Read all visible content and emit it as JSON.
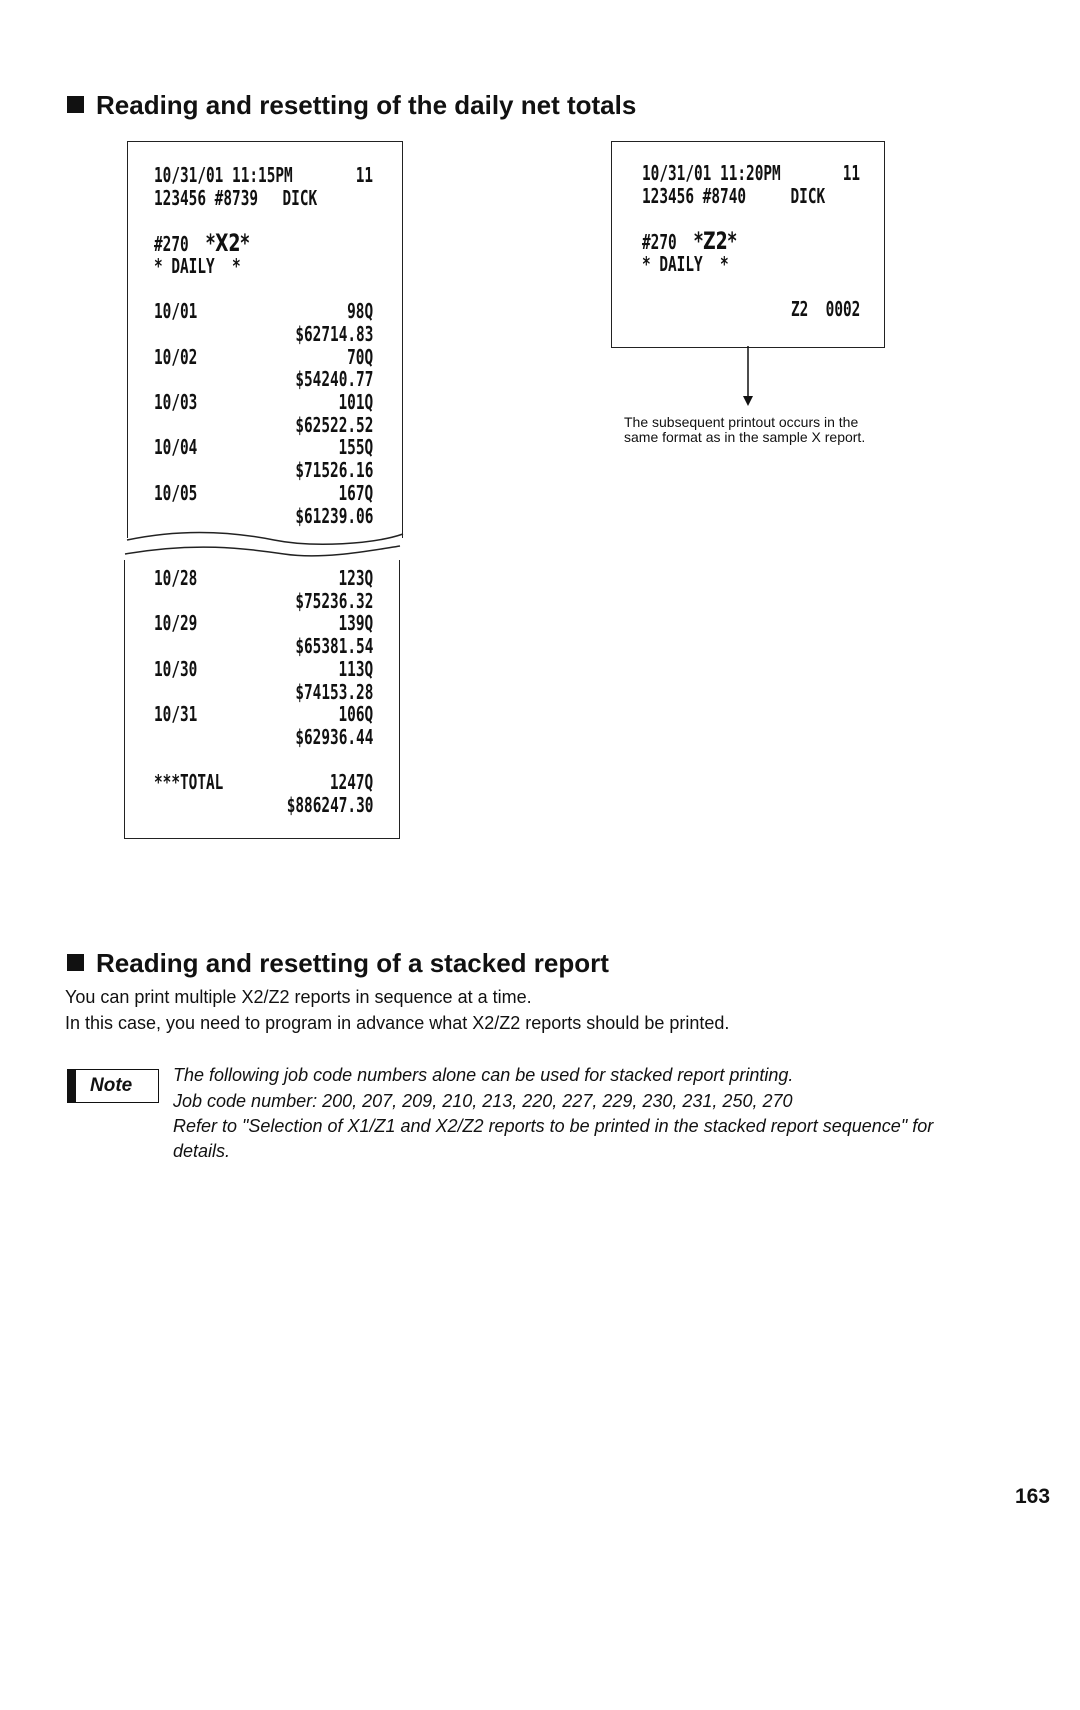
{
  "section1": {
    "heading": "Reading and resetting of the daily net totals",
    "x2_receipt": {
      "header_line1_left": "10/31/01 11:15PM",
      "header_line1_right": "11",
      "header_line2_left": "123456 #8739",
      "header_line2_right": "DICK",
      "job_code": "#270",
      "report_mode": "*X2*",
      "report_type": "* DAILY  *",
      "days_top": [
        {
          "date": "10/01",
          "count": "98Q",
          "amount": "$62714.83"
        },
        {
          "date": "10/02",
          "count": "70Q",
          "amount": "$54240.77"
        },
        {
          "date": "10/03",
          "count": "101Q",
          "amount": "$62522.52"
        },
        {
          "date": "10/04",
          "count": "155Q",
          "amount": "$71526.16"
        },
        {
          "date": "10/05",
          "count": "167Q",
          "amount": "$61239.06"
        }
      ],
      "days_bottom": [
        {
          "date": "10/28",
          "count": "123Q",
          "amount": "$75236.32"
        },
        {
          "date": "10/29",
          "count": "139Q",
          "amount": "$65381.54"
        },
        {
          "date": "10/30",
          "count": "113Q",
          "amount": "$74153.28"
        },
        {
          "date": "10/31",
          "count": "106Q",
          "amount": "$62936.44"
        }
      ],
      "total_label": "***TOTAL",
      "total_count": "1247Q",
      "total_amount": "$886247.30"
    },
    "z2_receipt": {
      "header_line1_left": "10/31/01 11:20PM",
      "header_line1_right": "11",
      "header_line2_left": "123456 #8740",
      "header_line2_right": "DICK",
      "job_code": "#270",
      "report_mode": "*Z2*",
      "report_type": "* DAILY  *",
      "counter": "Z2  0002"
    },
    "caption_line1": "The subsequent printout occurs in the",
    "caption_line2": "same format as in the sample X report."
  },
  "section2": {
    "heading": "Reading and resetting of a stacked report",
    "body_line1": "You can print multiple X2/Z2 reports in sequence at a time.",
    "body_line2": "In this case, you need to program in advance what X2/Z2 reports should be printed.",
    "note_label": "Note",
    "note_lines": [
      "The following job code numbers alone can be used for stacked report printing.",
      "Job code number: 200, 207, 209, 210, 213, 220, 227, 229, 230, 231, 250, 270",
      "Refer to \"Selection of X1/Z1 and X2/Z2 reports to be printed in the stacked report sequence\" for",
      "details."
    ]
  },
  "page_number": "163"
}
